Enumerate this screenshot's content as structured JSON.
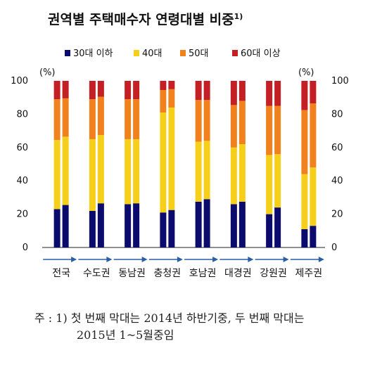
{
  "chart_data": {
    "type": "bar",
    "stacked": true,
    "title": "권역별 주택매수자 연령대별 비중",
    "title_sup": "1)",
    "unit_left": "(%)",
    "unit_right": "(%)",
    "ylim": [
      0,
      100
    ],
    "yticks": [
      0,
      20,
      40,
      60,
      80,
      100
    ],
    "grid": false,
    "legend_position": "top",
    "categories": [
      "전국",
      "수도권",
      "동남권",
      "충청권",
      "호남권",
      "대경권",
      "강원권",
      "제주권"
    ],
    "bars_per_category": [
      "2014년 하반기",
      "2015년 1~5월"
    ],
    "series": [
      {
        "name": "30대 이하",
        "color": "#0b0b6e",
        "values": [
          [
            23,
            25.5
          ],
          [
            22,
            26.5
          ],
          [
            26,
            26.5
          ],
          [
            21,
            22.5
          ],
          [
            27.5,
            29
          ],
          [
            26,
            27.5
          ],
          [
            20,
            24
          ],
          [
            11,
            13
          ]
        ]
      },
      {
        "name": "40대",
        "color": "#f6cf1a",
        "values": [
          [
            41.5,
            41
          ],
          [
            43,
            41
          ],
          [
            39,
            38.5
          ],
          [
            60,
            61.5
          ],
          [
            36,
            35
          ],
          [
            34,
            34.5
          ],
          [
            35.5,
            32
          ],
          [
            33,
            35
          ]
        ]
      },
      {
        "name": "50대",
        "color": "#f0811d",
        "values": [
          [
            24.5,
            23
          ],
          [
            24,
            23
          ],
          [
            24,
            24
          ],
          [
            13.5,
            11
          ],
          [
            25,
            24.5
          ],
          [
            25.5,
            26
          ],
          [
            29.5,
            29
          ],
          [
            38.5,
            38.5
          ]
        ]
      },
      {
        "name": "60대 이상",
        "color": "#c41f24",
        "values": [
          [
            11,
            10.5
          ],
          [
            11,
            9.5
          ],
          [
            11,
            11
          ],
          [
            5.5,
            5
          ],
          [
            11.5,
            11.5
          ],
          [
            14.5,
            12
          ],
          [
            15,
            15
          ],
          [
            17.5,
            13.5
          ]
        ]
      }
    ]
  },
  "footnote": {
    "line1": "주 : 1)  첫 번째 막대는 2014년 하반기중, 두 번째 막대는",
    "line2": "2015년  1~5월중임"
  }
}
